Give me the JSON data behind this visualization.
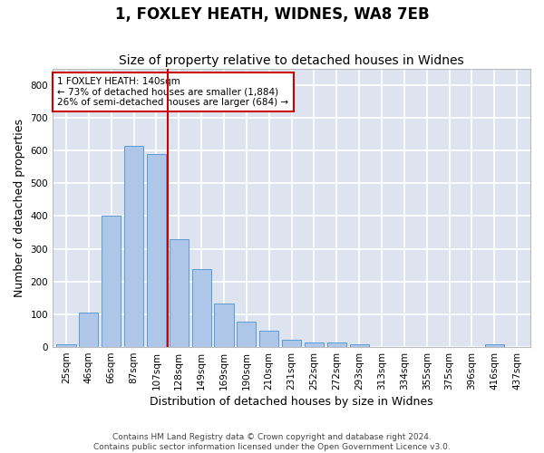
{
  "title": "1, FOXLEY HEATH, WIDNES, WA8 7EB",
  "subtitle": "Size of property relative to detached houses in Widnes",
  "xlabel": "Distribution of detached houses by size in Widnes",
  "ylabel": "Number of detached properties",
  "categories": [
    "25sqm",
    "46sqm",
    "66sqm",
    "87sqm",
    "107sqm",
    "128sqm",
    "149sqm",
    "169sqm",
    "190sqm",
    "210sqm",
    "231sqm",
    "252sqm",
    "272sqm",
    "293sqm",
    "313sqm",
    "334sqm",
    "355sqm",
    "375sqm",
    "396sqm",
    "416sqm",
    "437sqm"
  ],
  "values": [
    8,
    105,
    400,
    615,
    590,
    330,
    238,
    133,
    77,
    50,
    21,
    15,
    15,
    8,
    0,
    0,
    0,
    0,
    0,
    8,
    0
  ],
  "bar_color": "#aec6e8",
  "bar_edge_color": "#5b9bd5",
  "background_color": "#dde4f0",
  "grid_color": "#ffffff",
  "annotation_line1": "1 FOXLEY HEATH: 140sqm",
  "annotation_line2": "← 73% of detached houses are smaller (1,884)",
  "annotation_line3": "26% of semi-detached houses are larger (684) →",
  "annotation_box_color": "#cc0000",
  "vline_color": "#cc0000",
  "vline_position": 4.5,
  "footer": "Contains HM Land Registry data © Crown copyright and database right 2024.\nContains public sector information licensed under the Open Government Licence v3.0.",
  "ylim": [
    0,
    850
  ],
  "yticks": [
    0,
    100,
    200,
    300,
    400,
    500,
    600,
    700,
    800
  ],
  "title_fontsize": 12,
  "subtitle_fontsize": 10,
  "xlabel_fontsize": 9,
  "ylabel_fontsize": 9,
  "tick_fontsize": 7.5,
  "annotation_fontsize": 7.5,
  "footer_fontsize": 6.5
}
